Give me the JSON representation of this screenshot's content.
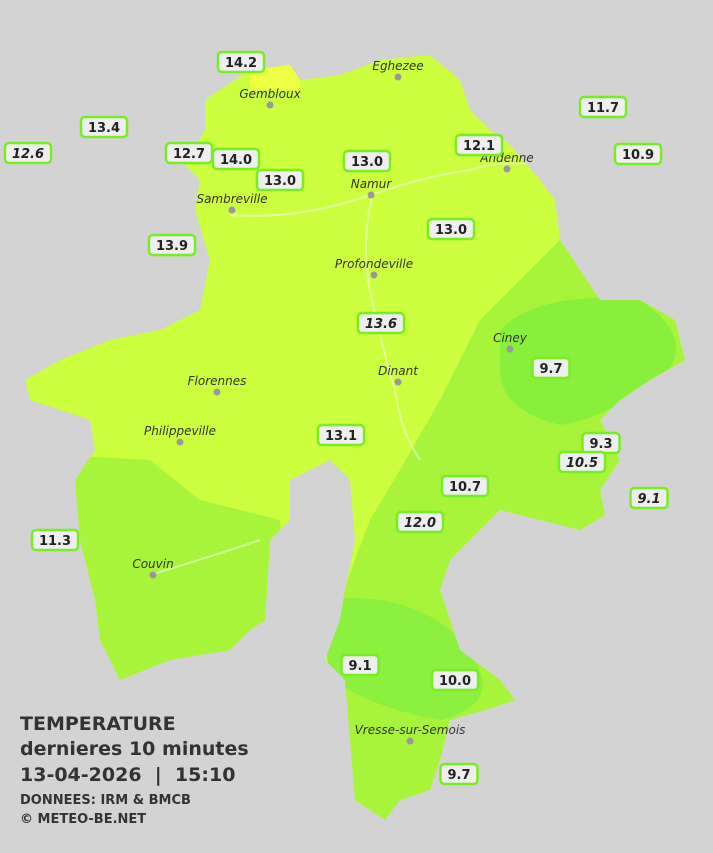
{
  "title": "TEMPERATURE",
  "subtitle": "dernieres 10 minutes",
  "timestamp": "13-04-2026  |  15:10",
  "source": "DONNEES: IRM & BMCB",
  "copyright": "© METEO-BE.NET",
  "cities": [
    {
      "label": "Eghezee"
    },
    {
      "label": "Gembloux"
    },
    {
      "label": "Andenne"
    },
    {
      "label": "Namur"
    },
    {
      "label": "Sambreville"
    },
    {
      "label": "Profondeville"
    },
    {
      "label": "Ciney"
    },
    {
      "label": "Dinant"
    },
    {
      "label": "Florennes"
    },
    {
      "label": "Philippeville"
    },
    {
      "label": "Couvin"
    },
    {
      "label": "Vresse-sur-Semois"
    }
  ],
  "stations": [
    {
      "label": "14.2",
      "italic": false
    },
    {
      "label": "13.4",
      "italic": false
    },
    {
      "label": "12.6",
      "italic": true
    },
    {
      "label": "12.7",
      "italic": false
    },
    {
      "label": "14.0",
      "italic": false
    },
    {
      "label": "13.0",
      "italic": false
    },
    {
      "label": "13.0",
      "italic": false
    },
    {
      "label": "12.1",
      "italic": false
    },
    {
      "label": "11.7",
      "italic": false
    },
    {
      "label": "10.9",
      "italic": false
    },
    {
      "label": "13.9",
      "italic": false
    },
    {
      "label": "13.0",
      "italic": false
    },
    {
      "label": "13.6",
      "italic": true
    },
    {
      "label": "9.7",
      "italic": false
    },
    {
      "label": "13.1",
      "italic": false
    },
    {
      "label": "9.3",
      "italic": false
    },
    {
      "label": "10.5",
      "italic": true
    },
    {
      "label": "9.1",
      "italic": true
    },
    {
      "label": "10.7",
      "italic": false
    },
    {
      "label": "12.0",
      "italic": true
    },
    {
      "label": "11.3",
      "italic": false
    },
    {
      "label": "9.1",
      "italic": false
    },
    {
      "label": "10.0",
      "italic": false
    },
    {
      "label": "9.7",
      "italic": false
    }
  ]
}
